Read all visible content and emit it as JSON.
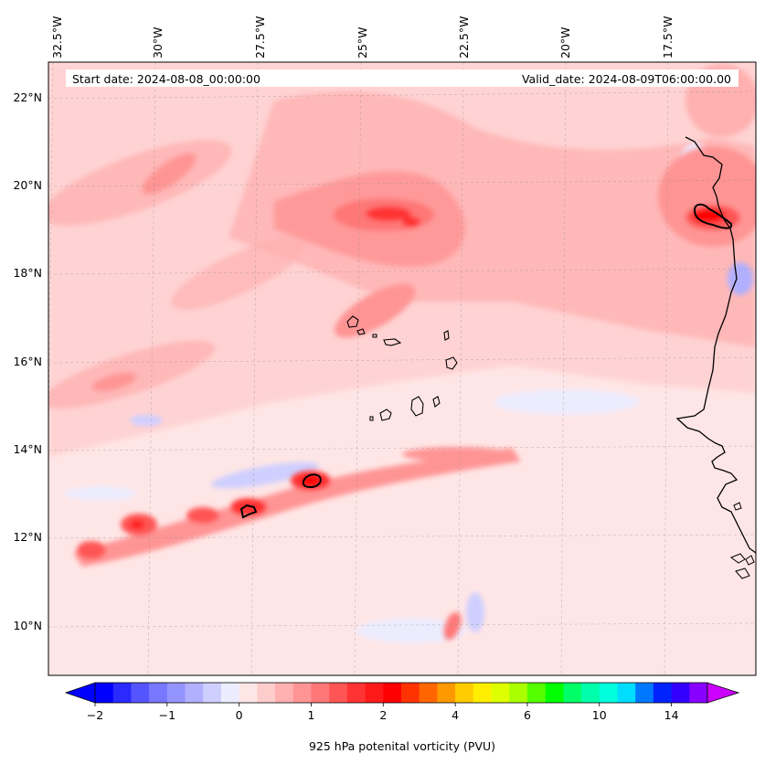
{
  "header": {
    "start_date": "Start date: 2024-08-08_00:00:00",
    "valid_date": "Valid_date: 2024-08-09T06:00:00.00"
  },
  "map": {
    "lon_labels": [
      "32.5°W",
      "30°W",
      "27.5°W",
      "25°W",
      "22.5°W",
      "20°W",
      "17.5°W"
    ],
    "lat_labels": [
      "22°N",
      "20°N",
      "18°N",
      "16°N",
      "14°N",
      "12°N",
      "10°N"
    ],
    "background_color": "#ffe6e6",
    "coast_color": "#000000"
  },
  "colorbar": {
    "title": "925 hPa potenital vorticity (PVU)",
    "tick_labels": [
      "−2",
      "−1",
      "0",
      "1",
      "2",
      "4",
      "6",
      "10",
      "14"
    ],
    "colors": [
      "#0000ff",
      "#2a2aff",
      "#5555ff",
      "#7777ff",
      "#9494ff",
      "#b0b0ff",
      "#cfcfff",
      "#ececff",
      "#ffe6e6",
      "#ffcccc",
      "#ffb0b0",
      "#ff9494",
      "#ff7777",
      "#ff5555",
      "#ff3333",
      "#ff1a1a",
      "#ff0000",
      "#ff3300",
      "#ff6600",
      "#ff9900",
      "#ffcc00",
      "#ffee00",
      "#ddff00",
      "#aaff00",
      "#55ff00",
      "#00ff00",
      "#00ff66",
      "#00ffaa",
      "#00ffdd",
      "#00ddff",
      "#0077ff",
      "#0022ff",
      "#3300ff",
      "#8800ff"
    ],
    "under_color": "#0000ff",
    "over_color": "#cc00ff"
  }
}
